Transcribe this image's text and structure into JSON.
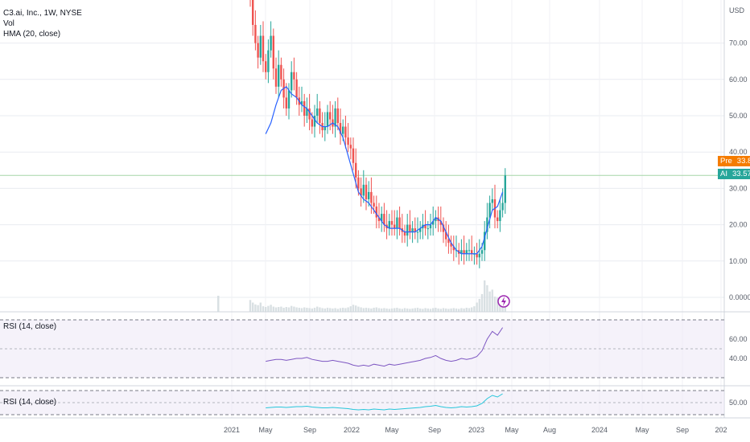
{
  "legend": {
    "symbol": "C3.ai, Inc., 1W, NYSE",
    "volume": "Vol",
    "hma": "HMA (20, close)"
  },
  "price_axis": {
    "currency": "USD",
    "ticks": [
      {
        "label": "70.00",
        "value": 70
      },
      {
        "label": "60.00",
        "value": 60
      },
      {
        "label": "50.00",
        "value": 50
      },
      {
        "label": "40.00",
        "value": 40
      },
      {
        "label": "30.00",
        "value": 30
      },
      {
        "label": "20.00",
        "value": 20
      },
      {
        "label": "10.00",
        "value": 10
      },
      {
        "label": "0.0000",
        "value": 0
      }
    ]
  },
  "badges": {
    "pre": {
      "tag": "Pre",
      "value": "33.83",
      "color": "#f57c00"
    },
    "last": {
      "tag": "AI",
      "value": "33.57",
      "color": "#26a69a"
    }
  },
  "rsi_panes": [
    {
      "label": "RSI (14, close)",
      "ticks": [
        {
          "label": "60.00",
          "value": 60
        },
        {
          "label": "40.00",
          "value": 40
        }
      ],
      "color": "#7e57c2"
    },
    {
      "label": "RSI (14, close)",
      "ticks": [
        {
          "label": "50.00",
          "value": 50
        }
      ],
      "color": "#26c6da"
    }
  ],
  "time_axis": [
    "2021",
    "May",
    "Sep",
    "2022",
    "May",
    "Sep",
    "2023",
    "May",
    "Aug",
    "2024",
    "May",
    "Sep",
    "202"
  ],
  "earnings_marker": {
    "icon": "lightning-icon",
    "color": "#9c27b0"
  },
  "colors": {
    "up": "#26a69a",
    "down": "#ef5350",
    "hma": "#2962ff",
    "last_line": "#a5d6a7"
  },
  "chart_data": {
    "type": "candlestick",
    "x_unit": "week (2021-01 start)",
    "ylim": [
      -2,
      80
    ],
    "close_series": [
      [
        0,
        82
      ],
      [
        1,
        75
      ],
      [
        2,
        70
      ],
      [
        3,
        66
      ],
      [
        4,
        72
      ],
      [
        5,
        65
      ],
      [
        6,
        62
      ],
      [
        7,
        68
      ],
      [
        8,
        72
      ],
      [
        9,
        63
      ],
      [
        10,
        58
      ],
      [
        11,
        64
      ],
      [
        12,
        60
      ],
      [
        13,
        55
      ],
      [
        14,
        52
      ],
      [
        15,
        57
      ],
      [
        16,
        62
      ],
      [
        17,
        60
      ],
      [
        18,
        55
      ],
      [
        19,
        53
      ],
      [
        20,
        54
      ],
      [
        21,
        50
      ],
      [
        22,
        52
      ],
      [
        23,
        49
      ],
      [
        24,
        47
      ],
      [
        25,
        50
      ],
      [
        26,
        52
      ],
      [
        27,
        48
      ],
      [
        28,
        46
      ],
      [
        29,
        47
      ],
      [
        30,
        51
      ],
      [
        31,
        49
      ],
      [
        32,
        47
      ],
      [
        33,
        52
      ],
      [
        34,
        48
      ],
      [
        35,
        45
      ],
      [
        36,
        47
      ],
      [
        37,
        44
      ],
      [
        38,
        42
      ],
      [
        39,
        41
      ],
      [
        40,
        37
      ],
      [
        41,
        33
      ],
      [
        42,
        30
      ],
      [
        43,
        28
      ],
      [
        44,
        31
      ],
      [
        45,
        27
      ],
      [
        46,
        29
      ],
      [
        47,
        26
      ],
      [
        48,
        25
      ],
      [
        49,
        22
      ],
      [
        50,
        21
      ],
      [
        51,
        23
      ],
      [
        52,
        20
      ],
      [
        53,
        19
      ],
      [
        54,
        21
      ],
      [
        55,
        20
      ],
      [
        56,
        19
      ],
      [
        57,
        22
      ],
      [
        58,
        19
      ],
      [
        59,
        18
      ],
      [
        60,
        17
      ],
      [
        61,
        20
      ],
      [
        62,
        18
      ],
      [
        63,
        19
      ],
      [
        64,
        18
      ],
      [
        65,
        18
      ],
      [
        66,
        19
      ],
      [
        67,
        20
      ],
      [
        68,
        19
      ],
      [
        69,
        19
      ],
      [
        70,
        20
      ],
      [
        71,
        21
      ],
      [
        72,
        22
      ],
      [
        73,
        21
      ],
      [
        74,
        20
      ],
      [
        75,
        18
      ],
      [
        76,
        16
      ],
      [
        77,
        15
      ],
      [
        78,
        14
      ],
      [
        79,
        13
      ],
      [
        80,
        13
      ],
      [
        81,
        12
      ],
      [
        82,
        13
      ],
      [
        83,
        12
      ],
      [
        84,
        13
      ],
      [
        85,
        13
      ],
      [
        86,
        12
      ],
      [
        87,
        12
      ],
      [
        88,
        11
      ],
      [
        89,
        12
      ],
      [
        90,
        13
      ],
      [
        91,
        18
      ],
      [
        92,
        22
      ],
      [
        93,
        26
      ],
      [
        94,
        27
      ],
      [
        95,
        22
      ],
      [
        96,
        21
      ],
      [
        97,
        24
      ],
      [
        98,
        26
      ],
      [
        99,
        33.57
      ]
    ],
    "hma_series": [
      [
        6,
        45
      ],
      [
        8,
        48
      ],
      [
        10,
        53
      ],
      [
        12,
        57
      ],
      [
        14,
        58
      ],
      [
        16,
        56
      ],
      [
        18,
        55
      ],
      [
        20,
        53
      ],
      [
        22,
        52
      ],
      [
        24,
        50
      ],
      [
        26,
        48
      ],
      [
        28,
        47
      ],
      [
        30,
        47
      ],
      [
        32,
        48
      ],
      [
        34,
        47
      ],
      [
        36,
        44
      ],
      [
        38,
        39
      ],
      [
        40,
        34
      ],
      [
        42,
        29
      ],
      [
        44,
        27
      ],
      [
        46,
        26
      ],
      [
        48,
        24
      ],
      [
        50,
        22
      ],
      [
        52,
        20
      ],
      [
        54,
        19
      ],
      [
        56,
        19
      ],
      [
        58,
        19
      ],
      [
        60,
        18
      ],
      [
        62,
        18
      ],
      [
        64,
        18
      ],
      [
        66,
        19
      ],
      [
        68,
        20
      ],
      [
        70,
        20
      ],
      [
        72,
        22
      ],
      [
        74,
        21
      ],
      [
        76,
        18
      ],
      [
        78,
        15
      ],
      [
        80,
        13
      ],
      [
        82,
        12
      ],
      [
        84,
        12
      ],
      [
        86,
        12
      ],
      [
        88,
        12
      ],
      [
        90,
        14
      ],
      [
        92,
        19
      ],
      [
        94,
        24
      ],
      [
        96,
        25
      ],
      [
        98,
        29
      ]
    ],
    "volume_series": [
      [
        0,
        3.2
      ],
      [
        1,
        2.5
      ],
      [
        2,
        2.0
      ],
      [
        3,
        1.8
      ],
      [
        4,
        2.5
      ],
      [
        5,
        1.5
      ],
      [
        6,
        1.3
      ],
      [
        7,
        1.6
      ],
      [
        8,
        1.9
      ],
      [
        9,
        1.4
      ],
      [
        10,
        1.2
      ],
      [
        11,
        1.3
      ],
      [
        12,
        1.4
      ],
      [
        13,
        1.1
      ],
      [
        14,
        1.3
      ],
      [
        15,
        1.2
      ],
      [
        16,
        1.6
      ],
      [
        17,
        1.4
      ],
      [
        18,
        1.2
      ],
      [
        19,
        1.1
      ],
      [
        20,
        1.0
      ],
      [
        21,
        1.2
      ],
      [
        22,
        1.1
      ],
      [
        23,
        1.0
      ],
      [
        24,
        0.9
      ],
      [
        25,
        1.1
      ],
      [
        26,
        1.4
      ],
      [
        27,
        1.2
      ],
      [
        28,
        1.0
      ],
      [
        29,
        0.9
      ],
      [
        30,
        1.1
      ],
      [
        31,
        1.0
      ],
      [
        32,
        0.9
      ],
      [
        33,
        1.0
      ],
      [
        34,
        0.8
      ],
      [
        35,
        1.0
      ],
      [
        36,
        1.1
      ],
      [
        37,
        1.0
      ],
      [
        38,
        1.2
      ],
      [
        39,
        1.5
      ],
      [
        40,
        1.9
      ],
      [
        41,
        1.7
      ],
      [
        42,
        1.4
      ],
      [
        43,
        1.2
      ],
      [
        44,
        1.0
      ],
      [
        45,
        1.1
      ],
      [
        46,
        1.0
      ],
      [
        47,
        0.9
      ],
      [
        48,
        1.1
      ],
      [
        49,
        1.2
      ],
      [
        50,
        1.0
      ],
      [
        51,
        0.9
      ],
      [
        52,
        1.0
      ],
      [
        53,
        0.9
      ],
      [
        54,
        0.8
      ],
      [
        55,
        0.9
      ],
      [
        56,
        1.0
      ],
      [
        57,
        1.1
      ],
      [
        58,
        0.9
      ],
      [
        59,
        0.8
      ],
      [
        60,
        1.0
      ],
      [
        61,
        0.9
      ],
      [
        62,
        0.8
      ],
      [
        63,
        0.9
      ],
      [
        64,
        1.0
      ],
      [
        65,
        1.1
      ],
      [
        66,
        0.9
      ],
      [
        67,
        0.8
      ],
      [
        68,
        1.0
      ],
      [
        69,
        0.9
      ],
      [
        70,
        0.8
      ],
      [
        71,
        1.0
      ],
      [
        72,
        1.1
      ],
      [
        73,
        0.9
      ],
      [
        74,
        0.8
      ],
      [
        75,
        1.0
      ],
      [
        76,
        0.9
      ],
      [
        77,
        0.8
      ],
      [
        78,
        0.9
      ],
      [
        79,
        1.0
      ],
      [
        80,
        0.9
      ],
      [
        81,
        0.8
      ],
      [
        82,
        1.0
      ],
      [
        83,
        0.9
      ],
      [
        84,
        1.1
      ],
      [
        85,
        1.0
      ],
      [
        86,
        1.2
      ],
      [
        87,
        1.5
      ],
      [
        88,
        2.5
      ],
      [
        89,
        3.5
      ],
      [
        90,
        4.8
      ],
      [
        91,
        8.5
      ],
      [
        92,
        7.2
      ],
      [
        93,
        5.5
      ],
      [
        94,
        6.0
      ],
      [
        95,
        4.1
      ],
      [
        96,
        3.8
      ],
      [
        97,
        3.2
      ],
      [
        98,
        2.8
      ],
      [
        99,
        3.0
      ]
    ],
    "rsi_series": [
      [
        6,
        37
      ],
      [
        8,
        38
      ],
      [
        10,
        39
      ],
      [
        12,
        39
      ],
      [
        14,
        38
      ],
      [
        16,
        39
      ],
      [
        18,
        40
      ],
      [
        20,
        40
      ],
      [
        22,
        41
      ],
      [
        24,
        39
      ],
      [
        26,
        38
      ],
      [
        28,
        37
      ],
      [
        30,
        37
      ],
      [
        32,
        38
      ],
      [
        34,
        37
      ],
      [
        36,
        36
      ],
      [
        38,
        35
      ],
      [
        40,
        33
      ],
      [
        42,
        32
      ],
      [
        44,
        33
      ],
      [
        46,
        32
      ],
      [
        48,
        34
      ],
      [
        50,
        33
      ],
      [
        52,
        32
      ],
      [
        54,
        34
      ],
      [
        56,
        33
      ],
      [
        58,
        34
      ],
      [
        60,
        35
      ],
      [
        62,
        36
      ],
      [
        64,
        37
      ],
      [
        66,
        38
      ],
      [
        68,
        40
      ],
      [
        70,
        41
      ],
      [
        72,
        43
      ],
      [
        74,
        40
      ],
      [
        76,
        38
      ],
      [
        78,
        37
      ],
      [
        80,
        38
      ],
      [
        82,
        40
      ],
      [
        84,
        39
      ],
      [
        86,
        40
      ],
      [
        88,
        42
      ],
      [
        90,
        48
      ],
      [
        92,
        60
      ],
      [
        94,
        68
      ],
      [
        96,
        64
      ],
      [
        98,
        72
      ]
    ]
  }
}
